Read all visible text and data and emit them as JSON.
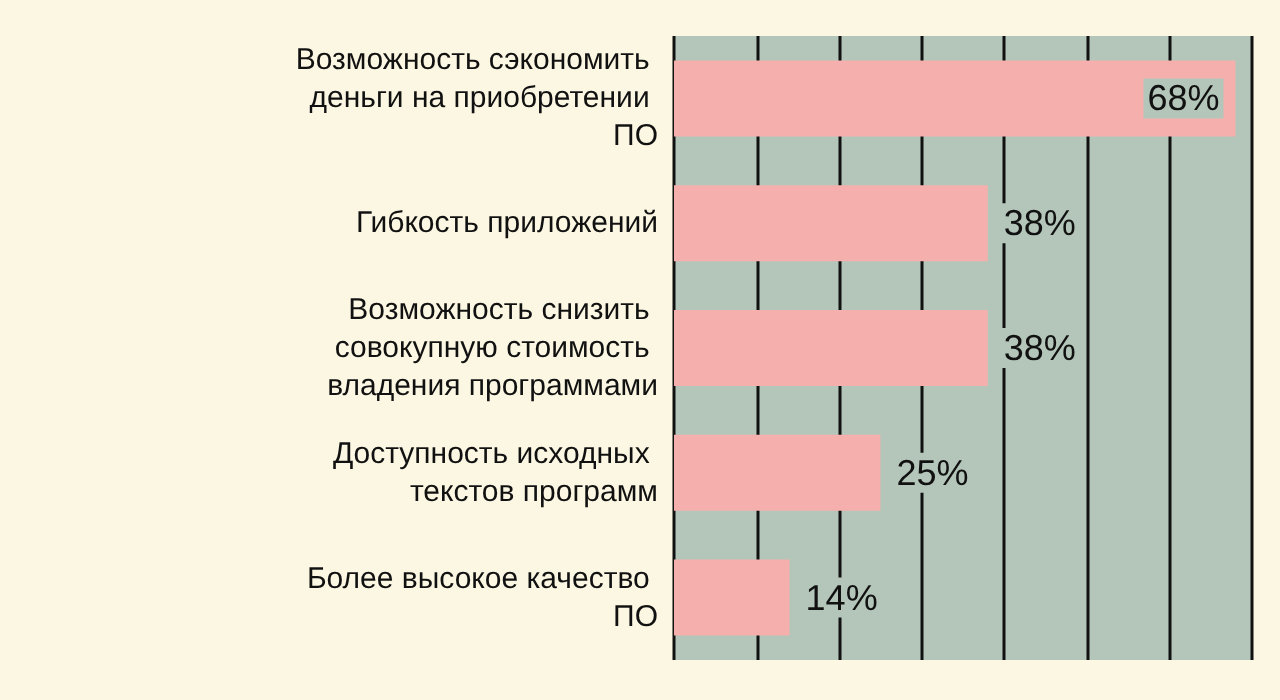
{
  "chart_data": {
    "type": "bar",
    "orientation": "horizontal",
    "categories": [
      "Возможность сэкономить деньги на приобретении ПО",
      "Гибкость приложений",
      "Возможность снизить совокупную стоимость владения программами",
      "Доступность исходных текстов программ",
      "Более высокое качество ПО"
    ],
    "values": [
      68,
      38,
      38,
      25,
      14
    ],
    "value_labels": [
      "68%",
      "38%",
      "38%",
      "25%",
      "14%"
    ],
    "color": "#f5b0ad",
    "xlim": [
      0,
      70
    ],
    "xticks": [
      {
        "value": 0,
        "label": null
      },
      {
        "value": 10,
        "label": null
      },
      {
        "value": 20,
        "label": null
      },
      {
        "value": 30,
        "label": null
      },
      {
        "value": 40,
        "label": null
      },
      {
        "value": 50,
        "label": null
      },
      {
        "value": 60,
        "label": null
      },
      {
        "value": 70,
        "label": null
      }
    ],
    "grid": "x",
    "tick_labels": "y"
  }
}
